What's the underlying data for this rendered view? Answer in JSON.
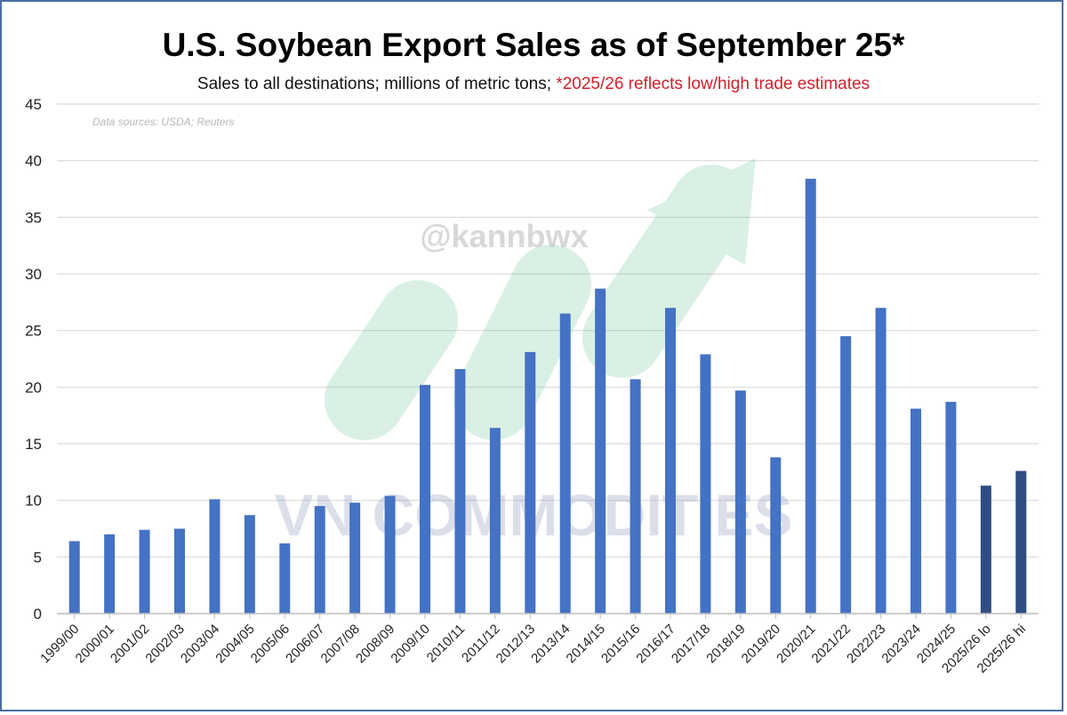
{
  "chart_data": {
    "type": "bar",
    "title": "U.S. Soybean Export Sales as of September 25*",
    "subtitle_main": "Sales to all destinations; millions of metric tons; ",
    "subtitle_note": "*2025/26 reflects low/high trade estimates",
    "source": "Data sources: USDA; Reuters",
    "watermark_handle": "@kannbwx",
    "watermark_brand": "VN COMMODITIES",
    "xlabel": "",
    "ylabel": "",
    "ylim": [
      0,
      45
    ],
    "yticks": [
      0,
      5,
      10,
      15,
      20,
      25,
      30,
      35,
      40,
      45
    ],
    "grid": true,
    "categories": [
      "1999/00",
      "2000/01",
      "2001/02",
      "2002/03",
      "2003/04",
      "2004/05",
      "2005/06",
      "2006/07",
      "2007/08",
      "2008/09",
      "2009/10",
      "2010/11",
      "2011/12",
      "2012/13",
      "2013/14",
      "2014/15",
      "2015/16",
      "2016/17",
      "2017/18",
      "2018/19",
      "2019/20",
      "2020/21",
      "2021/22",
      "2022/23",
      "2023/24",
      "2024/25",
      "2025/26 lo",
      "2025/26 hi"
    ],
    "values": [
      6.4,
      7.0,
      7.4,
      7.5,
      10.1,
      8.7,
      6.2,
      9.5,
      9.8,
      10.4,
      20.2,
      21.6,
      16.4,
      23.1,
      26.5,
      28.7,
      20.7,
      27.0,
      22.9,
      19.7,
      13.8,
      38.4,
      24.5,
      27.0,
      18.1,
      18.7,
      11.3,
      12.6
    ],
    "colors": {
      "bar": "#4472c4",
      "bar_estimate": "#2f4d82",
      "grid": "#d9d9d9",
      "note": "#d21f2b"
    }
  }
}
